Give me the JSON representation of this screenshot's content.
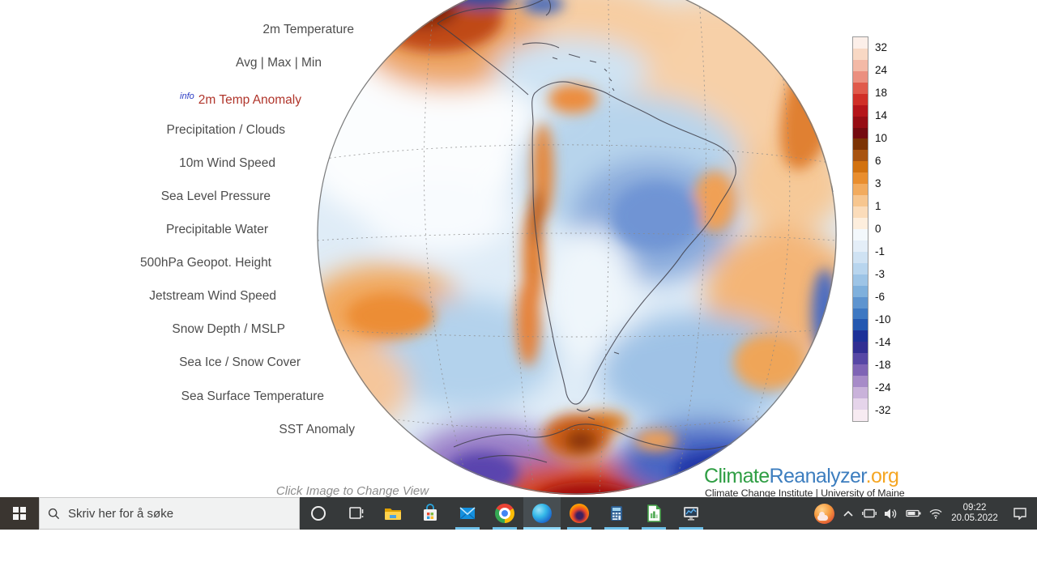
{
  "page": {
    "menu": {
      "items": [
        {
          "label": "2m Temperature",
          "active": false
        },
        {
          "label": "Avg | Max | Min",
          "active": false
        },
        {
          "label": "2m Temp Anomaly",
          "active": true,
          "info_label": "info"
        },
        {
          "label": "Precipitation / Clouds",
          "active": false
        },
        {
          "label": "10m Wind Speed",
          "active": false
        },
        {
          "label": "Sea Level Pressure",
          "active": false
        },
        {
          "label": "Precipitable Water",
          "active": false
        },
        {
          "label": "500hPa Geopot. Height",
          "active": false
        },
        {
          "label": "Jetstream Wind Speed",
          "active": false
        },
        {
          "label": "Snow Depth / MSLP",
          "active": false
        },
        {
          "label": "Sea Ice / Snow Cover",
          "active": false
        },
        {
          "label": "Sea Surface Temperature",
          "active": false
        },
        {
          "label": "SST Anomaly",
          "active": false
        }
      ],
      "hint": "Click Image to Change View"
    },
    "colorbar": {
      "labels": [
        "32",
        "24",
        "18",
        "14",
        "10",
        "6",
        "3",
        "1",
        "0",
        "-1",
        "-3",
        "-6",
        "-10",
        "-14",
        "-18",
        "-24",
        "-32"
      ],
      "segments": [
        "#fcefe9",
        "#f8d8c4",
        "#f3b9a6",
        "#eb8f7f",
        "#e05a4b",
        "#d02f27",
        "#b5151a",
        "#960d14",
        "#740b10",
        "#7c3305",
        "#a85410",
        "#d2720f",
        "#e98e2e",
        "#f2ab5e",
        "#f7c68f",
        "#fbdcba",
        "#fdeedd",
        "#f3f8fc",
        "#e4eef8",
        "#cfe2f3",
        "#b8d5ee",
        "#9dc4e6",
        "#7fb0dc",
        "#5e94cf",
        "#3e78c2",
        "#2458b0",
        "#1c3198",
        "#312e92",
        "#5747a5",
        "#7f64b5",
        "#a78bc8",
        "#c9b2da",
        "#e5d4ea",
        "#f7ebf2"
      ]
    },
    "logo": {
      "part1": "Climate",
      "part2": "Reanalyzer",
      "part3": ".org",
      "subtitle": "Climate Change Institute | University of Maine",
      "colors": {
        "green": "#2f9e44",
        "blue": "#3d7ebf",
        "orange": "#f5a623"
      }
    }
  },
  "taskbar": {
    "search": {
      "placeholder": "Skriv her for å søke"
    },
    "tray": {
      "time": "09:22",
      "date": "20.05.2022"
    }
  }
}
